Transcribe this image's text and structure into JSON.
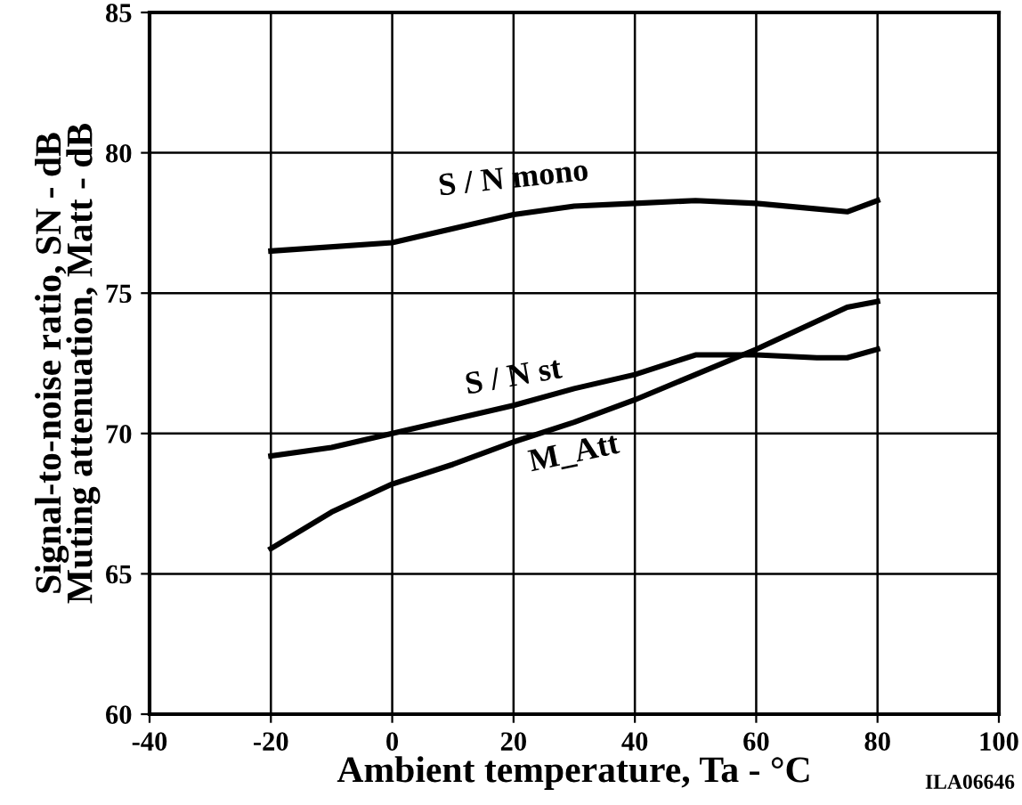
{
  "chart_data": {
    "type": "line",
    "xlabel": "Ambient temperature, Ta - °C",
    "ylabel": "Signal-to-noise ratio, SN - dB\nMuting attenuation, Matt - dB",
    "xlim": [
      -40,
      100
    ],
    "xticks": [
      -40,
      -20,
      0,
      20,
      40,
      60,
      80,
      100
    ],
    "ylim": [
      60,
      85
    ],
    "yticks": [
      60,
      65,
      70,
      75,
      80,
      85
    ],
    "grid": true,
    "legend": false,
    "series": [
      {
        "x": [
          -20,
          0,
          10,
          20,
          30,
          40,
          50,
          60,
          70,
          75,
          80
        ],
        "values": [
          76.5,
          76.8,
          77.3,
          77.8,
          78.1,
          78.2,
          78.3,
          78.2,
          78.0,
          77.9,
          78.3
        ],
        "color": "#000000",
        "name": "S / N mono"
      },
      {
        "x": [
          -20,
          -10,
          0,
          10,
          20,
          30,
          40,
          50,
          60,
          70,
          75,
          80
        ],
        "values": [
          69.2,
          69.5,
          70.0,
          70.5,
          71.0,
          71.6,
          72.1,
          72.8,
          72.8,
          72.7,
          72.7,
          73.0
        ],
        "color": "#000000",
        "name": "S / N st"
      },
      {
        "x": [
          -20,
          -10,
          0,
          10,
          20,
          30,
          40,
          50,
          60,
          70,
          75,
          80
        ],
        "values": [
          65.9,
          67.2,
          68.2,
          68.9,
          69.7,
          70.4,
          71.2,
          72.1,
          73.0,
          74.0,
          74.5,
          74.7
        ],
        "color": "#000000",
        "name": "M_Att"
      }
    ],
    "annotations": [
      "ILA06646"
    ]
  }
}
